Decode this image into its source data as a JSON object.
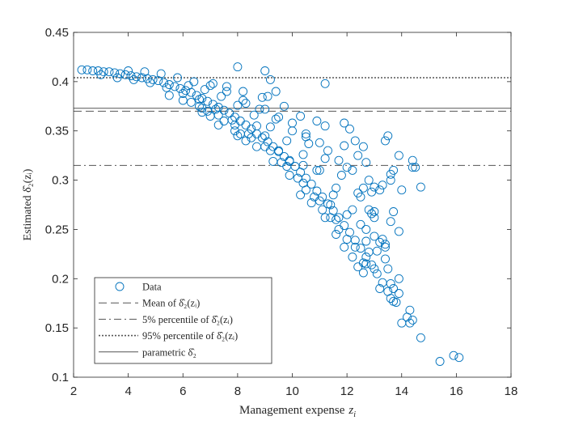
{
  "chart_data": {
    "type": "scatter",
    "title": "",
    "xlabel": "Management expense",
    "xlabel_symbol": "z",
    "xlabel_subscript": "i",
    "ylabel": "Estimated δ̂₂(zᵢ)",
    "xlim": [
      2,
      18
    ],
    "ylim": [
      0.1,
      0.45
    ],
    "x_ticks": [
      "2",
      "4",
      "6",
      "8",
      "10",
      "12",
      "14",
      "16",
      "18"
    ],
    "y_ticks": [
      "0.1",
      "0.15",
      "0.2",
      "0.25",
      "0.3",
      "0.35",
      "0.4",
      "0.45"
    ],
    "grid": false,
    "legend_position": "bottom-left",
    "series_color": "#0072bd",
    "reference_color": "#555555",
    "reference_lines": [
      {
        "name": "Mean of δ̂₂(zᵢ)",
        "style": "dashed",
        "y": 0.37
      },
      {
        "name": "5% percentile of δ̂₂(zᵢ)",
        "style": "dashdot",
        "y": 0.315
      },
      {
        "name": "95% percentile of δ̂₂(zᵢ)",
        "style": "dotted",
        "y": 0.404
      },
      {
        "name": "parametric δ̂₂",
        "style": "solid",
        "y": 0.373
      }
    ],
    "legend": [
      "Data",
      "Mean of δ̂₂(zᵢ)",
      "5% percentile of δ̂₂(zᵢ)",
      "95% percentile of δ̂₂(zᵢ)",
      "parametric δ̂₂"
    ],
    "series": [
      {
        "name": "Data",
        "marker": "circle",
        "points": [
          [
            2.3,
            0.412
          ],
          [
            2.5,
            0.412
          ],
          [
            2.7,
            0.411
          ],
          [
            2.9,
            0.411
          ],
          [
            3.1,
            0.41
          ],
          [
            3.3,
            0.41
          ],
          [
            3.5,
            0.409
          ],
          [
            3.7,
            0.408
          ],
          [
            3.9,
            0.407
          ],
          [
            4.1,
            0.406
          ],
          [
            4.3,
            0.405
          ],
          [
            4.5,
            0.404
          ],
          [
            4.7,
            0.403
          ],
          [
            4.9,
            0.402
          ],
          [
            5.1,
            0.401
          ],
          [
            5.3,
            0.399
          ],
          [
            5.5,
            0.397
          ],
          [
            5.7,
            0.395
          ],
          [
            5.9,
            0.393
          ],
          [
            6.1,
            0.391
          ],
          [
            6.3,
            0.389
          ],
          [
            6.5,
            0.386
          ],
          [
            6.7,
            0.383
          ],
          [
            6.9,
            0.38
          ],
          [
            7.1,
            0.377
          ],
          [
            7.3,
            0.374
          ],
          [
            7.5,
            0.371
          ],
          [
            7.7,
            0.368
          ],
          [
            7.9,
            0.364
          ],
          [
            8.1,
            0.36
          ],
          [
            8.3,
            0.356
          ],
          [
            8.5,
            0.352
          ],
          [
            8.7,
            0.347
          ],
          [
            8.9,
            0.343
          ],
          [
            9.1,
            0.339
          ],
          [
            9.3,
            0.334
          ],
          [
            9.5,
            0.329
          ],
          [
            9.7,
            0.324
          ],
          [
            9.9,
            0.319
          ],
          [
            10.1,
            0.314
          ],
          [
            10.3,
            0.308
          ],
          [
            10.5,
            0.302
          ],
          [
            10.7,
            0.296
          ],
          [
            10.9,
            0.289
          ],
          [
            11.1,
            0.283
          ],
          [
            11.3,
            0.276
          ],
          [
            11.5,
            0.269
          ],
          [
            11.7,
            0.262
          ],
          [
            11.9,
            0.254
          ],
          [
            12.1,
            0.247
          ],
          [
            12.3,
            0.239
          ],
          [
            12.5,
            0.231
          ],
          [
            12.7,
            0.222
          ],
          [
            12.9,
            0.214
          ],
          [
            13.1,
            0.205
          ],
          [
            13.3,
            0.196
          ],
          [
            13.5,
            0.187
          ],
          [
            13.7,
            0.177
          ],
          [
            3.0,
            0.407
          ],
          [
            3.6,
            0.404
          ],
          [
            4.2,
            0.402
          ],
          [
            4.8,
            0.399
          ],
          [
            5.4,
            0.394
          ],
          [
            6.0,
            0.388
          ],
          [
            6.6,
            0.382
          ],
          [
            7.2,
            0.372
          ],
          [
            7.8,
            0.361
          ],
          [
            8.4,
            0.347
          ],
          [
            9.0,
            0.334
          ],
          [
            9.6,
            0.318
          ],
          [
            10.2,
            0.302
          ],
          [
            10.8,
            0.283
          ],
          [
            11.4,
            0.262
          ],
          [
            12.0,
            0.24
          ],
          [
            12.6,
            0.216
          ],
          [
            13.2,
            0.19
          ],
          [
            4.0,
            0.411
          ],
          [
            4.6,
            0.41
          ],
          [
            5.2,
            0.408
          ],
          [
            5.8,
            0.404
          ],
          [
            6.4,
            0.4
          ],
          [
            7.0,
            0.396
          ],
          [
            7.6,
            0.39
          ],
          [
            8.2,
            0.381
          ],
          [
            8.8,
            0.372
          ],
          [
            9.4,
            0.362
          ],
          [
            10.0,
            0.35
          ],
          [
            10.6,
            0.337
          ],
          [
            11.2,
            0.322
          ],
          [
            11.8,
            0.305
          ],
          [
            12.4,
            0.287
          ],
          [
            13.0,
            0.268
          ],
          [
            6.2,
            0.396
          ],
          [
            6.8,
            0.392
          ],
          [
            7.4,
            0.385
          ],
          [
            8.0,
            0.376
          ],
          [
            8.6,
            0.366
          ],
          [
            9.2,
            0.354
          ],
          [
            9.8,
            0.34
          ],
          [
            10.4,
            0.326
          ],
          [
            11.0,
            0.31
          ],
          [
            11.6,
            0.292
          ],
          [
            6.3,
            0.379
          ],
          [
            6.9,
            0.37
          ],
          [
            7.5,
            0.36
          ],
          [
            8.1,
            0.347
          ],
          [
            8.7,
            0.334
          ],
          [
            9.3,
            0.319
          ],
          [
            9.9,
            0.305
          ],
          [
            10.5,
            0.29
          ],
          [
            11.1,
            0.27
          ],
          [
            11.7,
            0.25
          ],
          [
            12.3,
            0.232
          ],
          [
            8.3,
            0.378
          ],
          [
            9.0,
            0.372
          ],
          [
            9.5,
            0.364
          ],
          [
            10.0,
            0.358
          ],
          [
            10.5,
            0.347
          ],
          [
            11.0,
            0.338
          ],
          [
            10.9,
            0.36
          ],
          [
            11.2,
            0.355
          ],
          [
            9.1,
            0.385
          ],
          [
            9.4,
            0.39
          ],
          [
            7.1,
            0.398
          ],
          [
            7.6,
            0.395
          ],
          [
            8.2,
            0.39
          ],
          [
            8.9,
            0.384
          ],
          [
            9.7,
            0.375
          ],
          [
            10.3,
            0.365
          ],
          [
            5.5,
            0.386
          ],
          [
            6.0,
            0.381
          ],
          [
            6.7,
            0.373
          ],
          [
            7.3,
            0.366
          ],
          [
            7.9,
            0.356
          ],
          [
            8.5,
            0.343
          ],
          [
            9.2,
            0.33
          ],
          [
            9.8,
            0.314
          ],
          [
            10.4,
            0.297
          ],
          [
            11.0,
            0.279
          ],
          [
            8.0,
            0.415
          ],
          [
            9.0,
            0.411
          ],
          [
            9.2,
            0.402
          ],
          [
            11.2,
            0.398
          ],
          [
            10.5,
            0.344
          ],
          [
            11.3,
            0.33
          ],
          [
            11.7,
            0.32
          ],
          [
            12.0,
            0.313
          ],
          [
            11.9,
            0.335
          ],
          [
            12.1,
            0.352
          ],
          [
            11.9,
            0.358
          ],
          [
            12.3,
            0.34
          ],
          [
            12.6,
            0.334
          ],
          [
            12.4,
            0.325
          ],
          [
            12.7,
            0.318
          ],
          [
            12.2,
            0.31
          ],
          [
            12.8,
            0.3
          ],
          [
            12.6,
            0.292
          ],
          [
            12.9,
            0.288
          ],
          [
            12.5,
            0.283
          ],
          [
            12.8,
            0.27
          ],
          [
            13.2,
            0.29
          ],
          [
            13.0,
            0.293
          ],
          [
            13.3,
            0.295
          ],
          [
            12.2,
            0.27
          ],
          [
            12.0,
            0.265
          ],
          [
            12.5,
            0.255
          ],
          [
            12.7,
            0.25
          ],
          [
            13.0,
            0.243
          ],
          [
            13.2,
            0.237
          ],
          [
            13.1,
            0.228
          ],
          [
            13.4,
            0.232
          ],
          [
            13.4,
            0.22
          ],
          [
            13.5,
            0.21
          ],
          [
            13.6,
            0.195
          ],
          [
            13.7,
            0.19
          ],
          [
            13.9,
            0.185
          ],
          [
            13.9,
            0.2
          ],
          [
            13.6,
            0.18
          ],
          [
            13.8,
            0.176
          ],
          [
            13.3,
            0.24
          ],
          [
            13.0,
            0.262
          ],
          [
            12.9,
            0.266
          ],
          [
            13.5,
            0.345
          ],
          [
            13.6,
            0.3
          ],
          [
            13.6,
            0.306
          ],
          [
            13.7,
            0.31
          ],
          [
            13.9,
            0.325
          ],
          [
            13.4,
            0.34
          ],
          [
            14.0,
            0.29
          ],
          [
            14.4,
            0.32
          ],
          [
            14.4,
            0.313
          ],
          [
            14.5,
            0.313
          ],
          [
            14.7,
            0.293
          ],
          [
            14.3,
            0.168
          ],
          [
            14.3,
            0.155
          ],
          [
            14.2,
            0.161
          ],
          [
            14.4,
            0.158
          ],
          [
            14.7,
            0.14
          ],
          [
            15.4,
            0.116
          ],
          [
            15.9,
            0.122
          ],
          [
            16.1,
            0.12
          ],
          [
            14.0,
            0.155
          ],
          [
            13.7,
            0.268
          ],
          [
            13.6,
            0.258
          ],
          [
            12.6,
            0.206
          ],
          [
            12.4,
            0.212
          ],
          [
            12.7,
            0.215
          ],
          [
            12.2,
            0.222
          ],
          [
            11.6,
            0.245
          ],
          [
            11.9,
            0.232
          ],
          [
            11.6,
            0.26
          ],
          [
            11.4,
            0.275
          ],
          [
            11.5,
            0.285
          ],
          [
            10.9,
            0.31
          ],
          [
            9.0,
            0.345
          ],
          [
            8.7,
            0.355
          ],
          [
            8.0,
            0.345
          ],
          [
            7.9,
            0.35
          ],
          [
            7.0,
            0.365
          ],
          [
            6.7,
            0.369
          ],
          [
            6.6,
            0.375
          ],
          [
            7.3,
            0.356
          ],
          [
            8.3,
            0.34
          ],
          [
            9.5,
            0.33
          ],
          [
            9.9,
            0.32
          ],
          [
            10.4,
            0.315
          ],
          [
            10.3,
            0.285
          ],
          [
            10.7,
            0.277
          ],
          [
            11.2,
            0.262
          ],
          [
            12.7,
            0.238
          ],
          [
            12.8,
            0.227
          ],
          [
            13.0,
            0.21
          ],
          [
            13.9,
            0.248
          ],
          [
            13.4,
            0.235
          ]
        ]
      }
    ]
  }
}
